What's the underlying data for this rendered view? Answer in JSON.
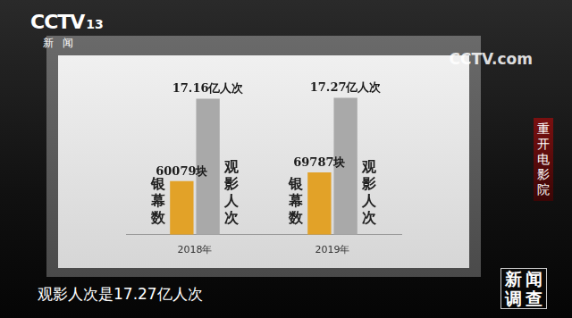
{
  "chart_data": {
    "type": "bar",
    "categories": [
      "2018年",
      "2019年"
    ],
    "series": [
      {
        "name": "银幕数",
        "color": "#e2a228",
        "values": [
          60079,
          69787
        ],
        "value_labels": [
          "60079块",
          "69787块"
        ]
      },
      {
        "name": "观影人次",
        "color": "#a9a9a9",
        "values": [
          17.16,
          17.27
        ],
        "value_labels": [
          "17.16亿人次",
          "17.27亿人次"
        ],
        "axis": "y2"
      }
    ],
    "ylim": [
      0,
      160000
    ],
    "yticks": [
      0,
      40000,
      80000,
      120000,
      160000
    ],
    "y2lim": [
      0,
      18
    ],
    "y2ticks": [
      0,
      6,
      12,
      18
    ],
    "grid": false,
    "data_labels": true,
    "tick_labels": "x"
  },
  "frame": {
    "channel_logo": "CCTV",
    "channel_number": "13",
    "channel_name": "新闻",
    "watermark": "CCTV.com",
    "segment": "重开电影院",
    "program": "新闻调查",
    "caption": "观影人次是17.27亿人次"
  }
}
